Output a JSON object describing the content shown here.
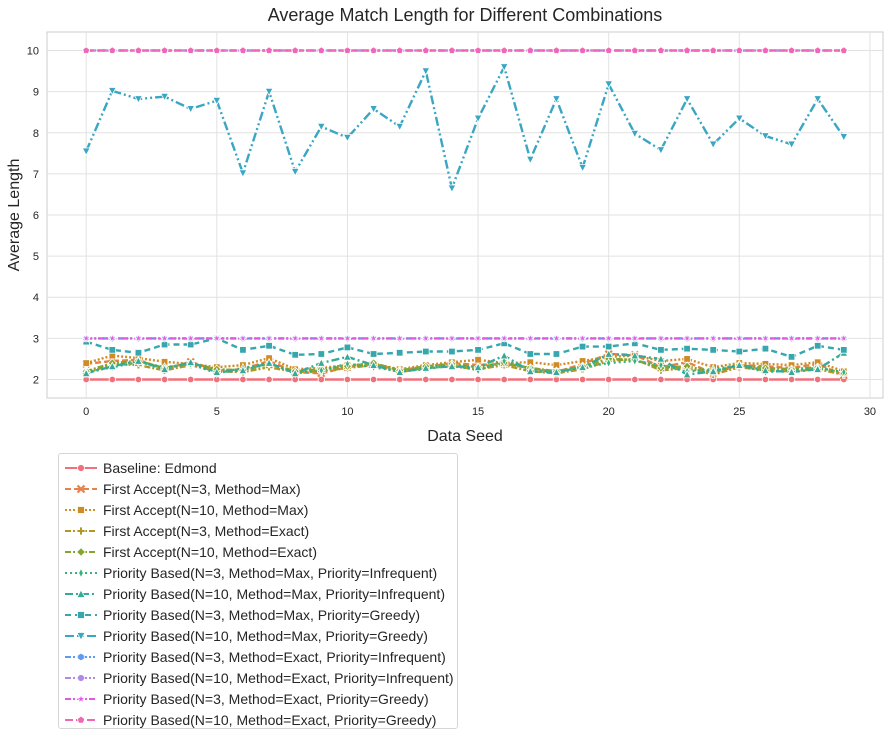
{
  "chart_data": {
    "type": "line",
    "title": "Average Match Length for Different Combinations",
    "xlabel": "Data Seed",
    "ylabel": "Average Length",
    "xlim": [
      -1.5,
      30.5
    ],
    "ylim": [
      1.55,
      10.45
    ],
    "xticks": [
      0,
      5,
      10,
      15,
      20,
      25,
      30
    ],
    "yticks": [
      2,
      3,
      4,
      5,
      6,
      7,
      8,
      9,
      10
    ],
    "grid": true,
    "legend_position": "below-left",
    "x": [
      0,
      1,
      2,
      3,
      4,
      5,
      6,
      7,
      8,
      9,
      10,
      11,
      12,
      13,
      14,
      15,
      16,
      17,
      18,
      19,
      20,
      21,
      22,
      23,
      24,
      25,
      26,
      27,
      28,
      29
    ],
    "series": [
      {
        "name": "Baseline: Edmond",
        "color": "#f0707b",
        "dash": "",
        "marker": "circle",
        "values": [
          2,
          2,
          2,
          2,
          2,
          2,
          2,
          2,
          2,
          2,
          2,
          2,
          2,
          2,
          2,
          2,
          2,
          2,
          2,
          2,
          2,
          2,
          2,
          2,
          2,
          2,
          2,
          2,
          2,
          2
        ]
      },
      {
        "name": "First Accept(N=3, Method=Max)",
        "color": "#e58149",
        "dash": "6,3",
        "marker": "x",
        "values": [
          2.38,
          2.45,
          2.48,
          2.25,
          2.43,
          2.22,
          2.25,
          2.45,
          2.18,
          2.15,
          2.3,
          2.38,
          2.22,
          2.3,
          2.4,
          2.35,
          2.38,
          2.28,
          2.18,
          2.38,
          2.62,
          2.6,
          2.3,
          2.42,
          2.15,
          2.35,
          2.32,
          2.28,
          2.38,
          2.1
        ]
      },
      {
        "name": "First Accept(N=10, Method=Max)",
        "color": "#d08b25",
        "dash": "2,2",
        "marker": "square",
        "values": [
          2.4,
          2.58,
          2.52,
          2.43,
          2.38,
          2.3,
          2.35,
          2.52,
          2.25,
          2.28,
          2.35,
          2.38,
          2.25,
          2.35,
          2.42,
          2.48,
          2.4,
          2.42,
          2.35,
          2.45,
          2.55,
          2.58,
          2.45,
          2.5,
          2.3,
          2.4,
          2.38,
          2.35,
          2.42,
          2.2
        ]
      },
      {
        "name": "First Accept(N=3, Method=Exact)",
        "color": "#b09826",
        "dash": "6,2,2,2",
        "marker": "plus",
        "values": [
          2.15,
          2.38,
          2.35,
          2.22,
          2.35,
          2.2,
          2.18,
          2.3,
          2.18,
          2.2,
          2.28,
          2.35,
          2.18,
          2.28,
          2.32,
          2.25,
          2.35,
          2.2,
          2.15,
          2.25,
          2.45,
          2.5,
          2.22,
          2.28,
          2.12,
          2.3,
          2.22,
          2.2,
          2.25,
          2.12
        ]
      },
      {
        "name": "First Accept(N=10, Method=Exact)",
        "color": "#85a52f",
        "dash": "6,2,2,2",
        "marker": "diamond",
        "values": [
          2.2,
          2.4,
          2.45,
          2.28,
          2.4,
          2.25,
          2.22,
          2.38,
          2.2,
          2.25,
          2.32,
          2.4,
          2.22,
          2.32,
          2.38,
          2.3,
          2.4,
          2.28,
          2.2,
          2.32,
          2.5,
          2.48,
          2.28,
          2.32,
          2.18,
          2.35,
          2.28,
          2.25,
          2.3,
          2.15
        ]
      },
      {
        "name": "Priority Based(N=3, Method=Max, Priority=Infrequent)",
        "color": "#34b27c",
        "dash": "2,3",
        "marker": "thin-diamond",
        "values": [
          2.18,
          2.3,
          2.42,
          2.3,
          2.38,
          2.15,
          2.28,
          2.4,
          2.15,
          2.22,
          2.38,
          2.3,
          2.2,
          2.25,
          2.35,
          2.22,
          2.45,
          2.25,
          2.18,
          2.3,
          2.4,
          2.45,
          2.35,
          2.2,
          2.25,
          2.35,
          2.18,
          2.22,
          2.28,
          2.18
        ]
      },
      {
        "name": "Priority Based(N=10, Method=Max, Priority=Infrequent)",
        "color": "#36aa99",
        "dash": "8,3,2,3",
        "marker": "triangle",
        "values": [
          2.15,
          2.32,
          2.45,
          2.25,
          2.42,
          2.18,
          2.22,
          2.4,
          2.15,
          2.4,
          2.55,
          2.35,
          2.18,
          2.28,
          2.32,
          2.3,
          2.58,
          2.2,
          2.18,
          2.3,
          2.62,
          2.58,
          2.5,
          2.12,
          2.2,
          2.35,
          2.22,
          2.18,
          2.25,
          2.65
        ]
      },
      {
        "name": "Priority Based(N=3, Method=Max, Priority=Greedy)",
        "color": "#37a7ad",
        "dash": "6,4",
        "marker": "square",
        "values": [
          2.92,
          2.72,
          2.65,
          2.85,
          2.85,
          3.0,
          2.72,
          2.82,
          2.6,
          2.62,
          2.78,
          2.62,
          2.65,
          2.68,
          2.68,
          2.72,
          2.88,
          2.62,
          2.62,
          2.8,
          2.8,
          2.88,
          2.72,
          2.75,
          2.72,
          2.68,
          2.75,
          2.55,
          2.82,
          2.72
        ]
      },
      {
        "name": "Priority Based(N=10, Method=Max, Priority=Greedy)",
        "color": "#39a6c4",
        "dash": "9,3,2,3,2,3",
        "marker": "triangle-down",
        "values": [
          7.55,
          9.02,
          8.82,
          8.88,
          8.58,
          8.78,
          7.02,
          9.0,
          7.05,
          8.15,
          7.88,
          8.58,
          8.15,
          9.5,
          6.65,
          8.35,
          9.6,
          7.35,
          8.82,
          7.15,
          9.18,
          7.98,
          7.58,
          8.82,
          7.72,
          8.35,
          7.92,
          7.72,
          8.82,
          7.9
        ]
      },
      {
        "name": "Priority Based(N=3, Method=Exact, Priority=Infrequent)",
        "color": "#5c9bf1",
        "dash": "6,2,2,2,2,2",
        "marker": "hexagon",
        "values": [
          3,
          3,
          3,
          3,
          3,
          3,
          3,
          3,
          3,
          3,
          3,
          3,
          3,
          3,
          3,
          3,
          3,
          3,
          3,
          3,
          3,
          3,
          3,
          3,
          3,
          3,
          3,
          3,
          3,
          3
        ]
      },
      {
        "name": "Priority Based(N=10, Method=Exact, Priority=Infrequent)",
        "color": "#b08ae8",
        "dash": "6,2,2,2,2,2",
        "marker": "circle",
        "values": [
          10,
          10,
          10,
          10,
          10,
          10,
          10,
          10,
          10,
          10,
          10,
          10,
          10,
          10,
          10,
          10,
          10,
          10,
          10,
          10,
          10,
          10,
          10,
          10,
          10,
          10,
          10,
          10,
          10,
          10
        ]
      },
      {
        "name": "Priority Based(N=3, Method=Exact, Priority=Greedy)",
        "color": "#e459e3",
        "dash": "6,2,2,2",
        "marker": "star",
        "values": [
          3,
          3,
          3,
          3,
          3,
          3,
          3,
          3,
          3,
          3,
          3,
          3,
          3,
          3,
          3,
          3,
          3,
          3,
          3,
          3,
          3,
          3,
          3,
          3,
          3,
          3,
          3,
          3,
          3,
          3
        ]
      },
      {
        "name": "Priority Based(N=10, Method=Exact, Priority=Greedy)",
        "color": "#f067b8",
        "dash": "8,3",
        "marker": "pentagon",
        "values": [
          10,
          10,
          10,
          10,
          10,
          10,
          10,
          10,
          10,
          10,
          10,
          10,
          10,
          10,
          10,
          10,
          10,
          10,
          10,
          10,
          10,
          10,
          10,
          10,
          10,
          10,
          10,
          10,
          10,
          10
        ]
      }
    ]
  }
}
